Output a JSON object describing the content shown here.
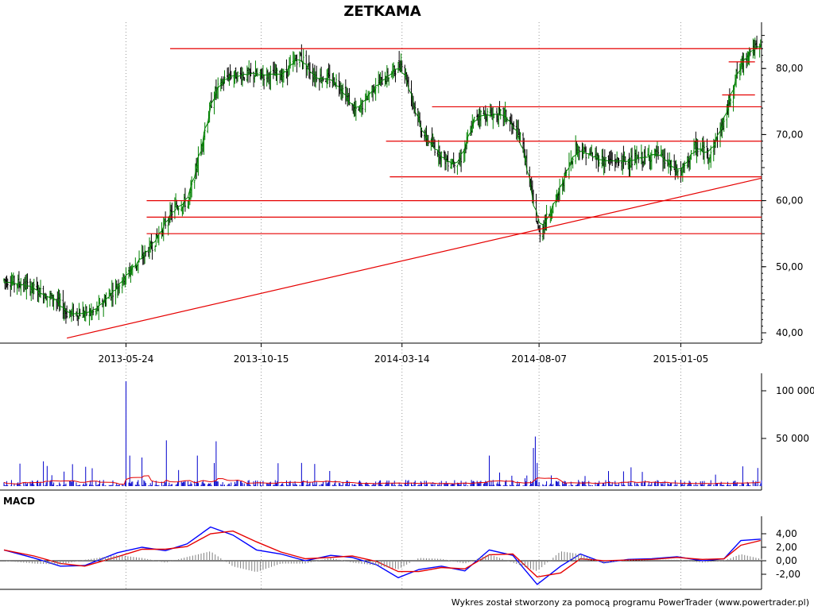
{
  "chart_data": [
    {
      "type": "candlestick",
      "title": "ZETKAMA",
      "x_tick_labels": [
        "2013-05-24",
        "2013-10-15",
        "2014-03-14",
        "2014-08-07",
        "2015-01-05"
      ],
      "y_tick_labels": [
        "40,00",
        "50,00",
        "60,00",
        "70,00",
        "80,00"
      ],
      "y_ticks": [
        40,
        50,
        60,
        70,
        80
      ],
      "ylim": [
        38.5,
        86
      ],
      "grid": "dotted vertical at date ticks",
      "price_path_approx": {
        "x_dates": [
          "2013-01-14",
          "2013-02-10",
          "2013-03-10",
          "2013-03-22",
          "2013-04-20",
          "2013-05-20",
          "2013-06-20",
          "2013-07-15",
          "2013-07-30",
          "2013-08-10",
          "2013-08-25",
          "2013-09-10",
          "2013-10-01",
          "2013-10-15",
          "2013-11-08",
          "2013-11-25",
          "2013-12-10",
          "2014-01-05",
          "2014-01-25",
          "2014-02-10",
          "2014-03-01",
          "2014-03-14",
          "2014-04-05",
          "2014-05-01",
          "2014-05-15",
          "2014-06-01",
          "2014-07-01",
          "2014-07-20",
          "2014-08-07",
          "2014-08-25",
          "2014-09-15",
          "2014-10-15",
          "2014-11-15",
          "2014-12-10",
          "2015-01-05",
          "2015-01-20",
          "2015-02-05",
          "2015-02-20",
          "2015-03-05",
          "2015-03-20"
        ],
        "close": [
          48,
          47,
          45,
          43,
          43,
          48,
          53,
          59,
          60,
          67,
          76,
          79,
          79,
          79,
          79,
          82,
          79,
          78,
          73,
          77,
          79,
          81,
          70,
          66,
          66,
          73,
          73,
          69,
          55,
          60,
          68,
          66,
          66,
          67,
          64,
          68,
          67,
          72,
          79,
          83
        ]
      },
      "horizontal_lines": [
        {
          "y": 83.0,
          "from": "2013-07-10",
          "to": "2015-04-01"
        },
        {
          "y": 81.0,
          "from": "2015-02-25",
          "to": "2015-03-25"
        },
        {
          "y": 76.0,
          "from": "2015-02-18",
          "to": "2015-03-25"
        },
        {
          "y": 74.2,
          "from": "2014-04-15",
          "to": "2015-04-01"
        },
        {
          "y": 69.0,
          "from": "2014-02-25",
          "to": "2015-04-01"
        },
        {
          "y": 63.6,
          "from": "2014-03-01",
          "to": "2015-04-01"
        },
        {
          "y": 60.0,
          "from": "2013-06-15",
          "to": "2015-04-01"
        },
        {
          "y": 57.5,
          "from": "2013-06-15",
          "to": "2015-04-01"
        },
        {
          "y": 55.0,
          "from": "2013-06-15",
          "to": "2015-04-01"
        }
      ],
      "trend_line": {
        "from": [
          "2013-03-22",
          39.2
        ],
        "to": [
          "2015-04-01",
          63.4
        ]
      },
      "colors": {
        "up": "#008000",
        "down": "#000000",
        "levels": "#e60000"
      }
    },
    {
      "type": "bar",
      "name": "volume",
      "y_tick_labels": [
        "50 000",
        "100 000"
      ],
      "y_ticks": [
        50000,
        100000
      ],
      "ylim": [
        0,
        115000
      ],
      "spikes": [
        {
          "date": "2013-05-24",
          "value": 110000
        },
        {
          "date": "2013-07-06",
          "value": 48000
        },
        {
          "date": "2013-08-28",
          "value": 47000
        },
        {
          "date": "2013-05-28",
          "value": 32000
        },
        {
          "date": "2013-06-10",
          "value": 30000
        },
        {
          "date": "2014-08-03",
          "value": 52000
        },
        {
          "date": "2014-08-01",
          "value": 40000
        },
        {
          "date": "2014-06-15",
          "value": 32000
        },
        {
          "date": "2015-03-28",
          "value": 19000
        },
        {
          "date": "2013-02-25",
          "value": 26000
        },
        {
          "date": "2013-08-08",
          "value": 32000
        },
        {
          "date": "2013-11-02",
          "value": 24000
        }
      ],
      "colors": {
        "bars": "#0000cc",
        "average": "#e60000"
      }
    },
    {
      "type": "line",
      "name": "MACD",
      "label": "MACD",
      "y_tick_labels": [
        "-2,00",
        "0,00",
        "2,00",
        "4,00"
      ],
      "y_ticks": [
        -2,
        0,
        2,
        4
      ],
      "ylim": [
        -4,
        5.2
      ],
      "x_dates": [
        "2013-01-14",
        "2013-02-15",
        "2013-03-15",
        "2013-04-10",
        "2013-05-15",
        "2013-06-10",
        "2013-07-05",
        "2013-07-28",
        "2013-08-22",
        "2013-09-15",
        "2013-10-10",
        "2013-11-05",
        "2013-12-01",
        "2013-12-28",
        "2014-01-20",
        "2014-02-15",
        "2014-03-10",
        "2014-04-01",
        "2014-04-25",
        "2014-05-20",
        "2014-06-15",
        "2014-07-10",
        "2014-08-05",
        "2014-08-30",
        "2014-09-20",
        "2014-10-15",
        "2014-11-10",
        "2014-12-05",
        "2015-01-01",
        "2015-01-28",
        "2015-02-20",
        "2015-03-10",
        "2015-03-31"
      ],
      "series": [
        {
          "color": "#0000ff",
          "values": [
            1.6,
            0.4,
            -0.8,
            -0.7,
            1.2,
            2.0,
            1.5,
            2.5,
            5.0,
            3.8,
            1.6,
            1.0,
            0.0,
            0.8,
            0.5,
            -0.6,
            -2.5,
            -1.3,
            -0.8,
            -1.5,
            1.6,
            0.8,
            -3.5,
            -0.8,
            1.0,
            -0.3,
            0.2,
            0.3,
            0.6,
            0.0,
            0.3,
            3.0,
            3.2
          ]
        },
        {
          "color": "#e60000",
          "values": [
            1.6,
            0.7,
            -0.4,
            -0.8,
            0.6,
            1.7,
            1.7,
            2.1,
            4.0,
            4.4,
            2.8,
            1.3,
            0.3,
            0.5,
            0.7,
            -0.1,
            -1.6,
            -1.6,
            -1.0,
            -1.2,
            0.9,
            1.0,
            -2.4,
            -1.8,
            0.3,
            0.0,
            0.1,
            0.2,
            0.5,
            0.2,
            0.3,
            2.3,
            3.0
          ]
        }
      ]
    }
  ],
  "footer": "Wykres został stworzony za pomocą programu PowerTrader (www.powertrader.pl)"
}
